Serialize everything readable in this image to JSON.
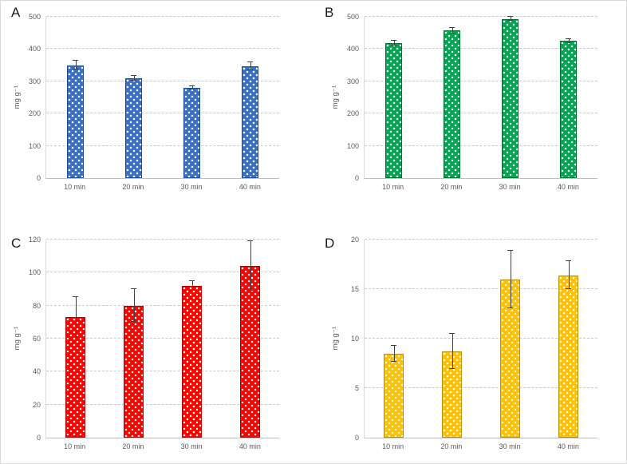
{
  "figure": {
    "panel_labels": [
      "A",
      "B",
      "C",
      "D"
    ]
  },
  "chart_data": [
    {
      "type": "bar",
      "panel": "A",
      "title": "",
      "xlabel": "",
      "ylabel": "mg g⁻¹",
      "categories": [
        "10 min",
        "20 min",
        "30 min",
        "40 min"
      ],
      "values": [
        350,
        310,
        280,
        347
      ],
      "errors": [
        13,
        8,
        5,
        12
      ],
      "ylim": [
        0,
        500
      ],
      "ytick_step": 100,
      "bar_color": "#3B6FC4",
      "bar_border": "#1F4E99",
      "error_bar_color": "#3f3f3f",
      "grid": "dashed",
      "legend": "none"
    },
    {
      "type": "bar",
      "panel": "B",
      "title": "",
      "xlabel": "",
      "ylabel": "mg g⁻¹",
      "categories": [
        "10 min",
        "20 min",
        "30 min",
        "40 min"
      ],
      "values": [
        418,
        457,
        493,
        425
      ],
      "errors": [
        8,
        8,
        6,
        6
      ],
      "ylim": [
        0,
        500
      ],
      "ytick_step": 100,
      "bar_color": "#00A550",
      "bar_border": "#00722F",
      "error_bar_color": "#3f3f3f",
      "grid": "dashed",
      "legend": "none"
    },
    {
      "type": "bar",
      "panel": "C",
      "title": "",
      "xlabel": "",
      "ylabel": "mg g⁻¹",
      "categories": [
        "10 min",
        "20 min",
        "30 min",
        "40 min"
      ],
      "values": [
        73,
        80,
        92,
        104
      ],
      "errors": [
        12,
        10,
        3,
        15
      ],
      "ylim": [
        0,
        120
      ],
      "ytick_step": 20,
      "bar_color": "#FE0000",
      "bar_border": "#B80000",
      "error_bar_color": "#3f3f3f",
      "grid": "dashed",
      "legend": "none"
    },
    {
      "type": "bar",
      "panel": "D",
      "title": "",
      "xlabel": "",
      "ylabel": "mg g⁻¹",
      "categories": [
        "10 min",
        "20 min",
        "30 min",
        "40 min"
      ],
      "values": [
        8.5,
        8.7,
        16,
        16.4
      ],
      "errors": [
        0.8,
        1.8,
        2.9,
        1.4
      ],
      "ylim": [
        0,
        20
      ],
      "ytick_step": 5,
      "bar_color": "#FFC000",
      "bar_border": "#BF9000",
      "error_bar_color": "#3f3f3f",
      "grid": "dashed",
      "legend": "none"
    }
  ]
}
